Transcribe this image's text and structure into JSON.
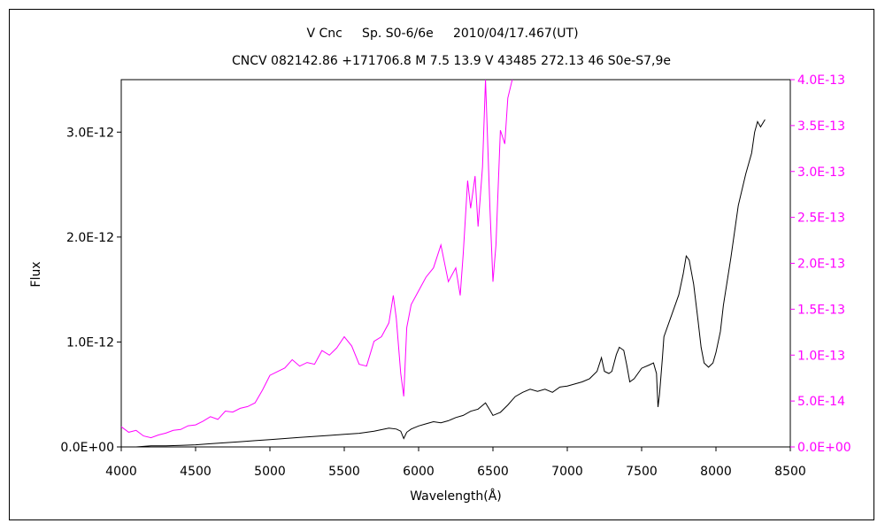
{
  "chart_data": {
    "type": "line",
    "title": "V Cnc     Sp. S0-6/6e     2010/04/17.467(UT)",
    "subtitle": "CNCV 082142.86 +171706.8 M 7.5 13.9 V 43485 272.13 46 S0e-S7,9e",
    "xlabel": "Wavelength(Å)",
    "ylabel": "Flux",
    "xlim": [
      4000,
      8500
    ],
    "ylim": [
      0,
      3.5e-12
    ],
    "y2lim": [
      0,
      4e-13
    ],
    "grid": false,
    "x_ticks": [
      "4000",
      "4500",
      "5000",
      "5500",
      "6000",
      "6500",
      "7000",
      "7500",
      "8000",
      "8500"
    ],
    "y_ticks": [
      "0.0E+00",
      "1.0E-12",
      "2.0E-12",
      "3.0E-12"
    ],
    "y2_ticks": [
      "0.0E+00",
      "5.0E-14",
      "1.0E-13",
      "1.5E-13",
      "2.0E-13",
      "2.5E-13",
      "3.0E-13",
      "3.5E-13",
      "4.0E-13"
    ],
    "colors": {
      "series1": "#000000",
      "series2": "#ff00ff"
    },
    "series": [
      {
        "axis": "left",
        "x": [
          4000,
          4100,
          4200,
          4300,
          4400,
          4500,
          4600,
          4700,
          4800,
          4900,
          5000,
          5100,
          5200,
          5300,
          5400,
          5500,
          5600,
          5700,
          5800,
          5850,
          5880,
          5900,
          5920,
          5950,
          6000,
          6050,
          6100,
          6150,
          6200,
          6250,
          6300,
          6350,
          6400,
          6450,
          6480,
          6500,
          6550,
          6600,
          6650,
          6700,
          6750,
          6800,
          6850,
          6900,
          6950,
          7000,
          7050,
          7100,
          7150,
          7200,
          7230,
          7250,
          7280,
          7300,
          7330,
          7350,
          7380,
          7400,
          7420,
          7450,
          7500,
          7550,
          7580,
          7600,
          7610,
          7620,
          7640,
          7650,
          7700,
          7750,
          7780,
          7800,
          7820,
          7850,
          7880,
          7900,
          7920,
          7950,
          7980,
          8000,
          8030,
          8050,
          8100,
          8150,
          8200,
          8240,
          8260,
          8280,
          8300,
          8330
        ],
        "values": [
          0.0,
          0.0,
          1e-14,
          1e-14,
          1.5e-14,
          2e-14,
          3e-14,
          4e-14,
          5e-14,
          6e-14,
          7e-14,
          8e-14,
          9e-14,
          1e-13,
          1.1e-13,
          1.2e-13,
          1.3e-13,
          1.5e-13,
          1.8e-13,
          1.7e-13,
          1.5e-13,
          8e-14,
          1.4e-13,
          1.7e-13,
          2e-13,
          2.2e-13,
          2.4e-13,
          2.3e-13,
          2.5e-13,
          2.8e-13,
          3e-13,
          3.4e-13,
          3.6e-13,
          4.2e-13,
          3.5e-13,
          3e-13,
          3.3e-13,
          4e-13,
          4.8e-13,
          5.2e-13,
          5.5e-13,
          5.3e-13,
          5.5e-13,
          5.2e-13,
          5.7e-13,
          5.8e-13,
          6e-13,
          6.2e-13,
          6.5e-13,
          7.2e-13,
          8.5e-13,
          7.2e-13,
          7e-13,
          7.2e-13,
          8.8e-13,
          9.5e-13,
          9.2e-13,
          7.8e-13,
          6.2e-13,
          6.5e-13,
          7.5e-13,
          7.8e-13,
          8e-13,
          7e-13,
          3.8e-13,
          5e-13,
          8.5e-13,
          1.05e-12,
          1.25e-12,
          1.45e-12,
          1.65e-12,
          1.82e-12,
          1.78e-12,
          1.55e-12,
          1.2e-12,
          9.5e-13,
          8e-13,
          7.6e-13,
          8e-13,
          9e-13,
          1.1e-12,
          1.35e-12,
          1.8e-12,
          2.3e-12,
          2.6e-12,
          2.8e-12,
          3e-12,
          3.1e-12,
          3.05e-12,
          3.12e-12
        ]
      },
      {
        "axis": "right",
        "x": [
          4000,
          4050,
          4100,
          4150,
          4200,
          4250,
          4300,
          4350,
          4400,
          4450,
          4500,
          4550,
          4600,
          4650,
          4700,
          4750,
          4800,
          4850,
          4900,
          4950,
          5000,
          5050,
          5100,
          5150,
          5200,
          5250,
          5300,
          5350,
          5400,
          5450,
          5500,
          5550,
          5600,
          5650,
          5700,
          5750,
          5800,
          5830,
          5850,
          5880,
          5900,
          5920,
          5950,
          6000,
          6050,
          6100,
          6150,
          6200,
          6250,
          6280,
          6300,
          6330,
          6350,
          6380,
          6400,
          6430,
          6450,
          6480,
          6500,
          6520,
          6550,
          6580,
          6600,
          6630
        ],
        "values": [
          2.2e-14,
          1.6e-14,
          1.8e-14,
          1.2e-14,
          1e-14,
          1.3e-14,
          1.5e-14,
          1.8e-14,
          1.9e-14,
          2.3e-14,
          2.4e-14,
          2.8e-14,
          3.3e-14,
          3e-14,
          3.9e-14,
          3.8e-14,
          4.2e-14,
          4.4e-14,
          4.8e-14,
          6.2e-14,
          7.8e-14,
          8.2e-14,
          8.6e-14,
          9.5e-14,
          8.8e-14,
          9.2e-14,
          9e-14,
          1.05e-13,
          1e-13,
          1.08e-13,
          1.2e-13,
          1.1e-13,
          9e-14,
          8.8e-14,
          1.15e-13,
          1.2e-13,
          1.35e-13,
          1.65e-13,
          1.4e-13,
          8e-14,
          5.5e-14,
          1.3e-13,
          1.55e-13,
          1.7e-13,
          1.85e-13,
          1.95e-13,
          2.2e-13,
          1.8e-13,
          1.95e-13,
          1.65e-13,
          2.1e-13,
          2.9e-13,
          2.6e-13,
          2.95e-13,
          2.4e-13,
          3.05e-13,
          4e-13,
          2.6e-13,
          1.8e-13,
          2.2e-13,
          3.45e-13,
          3.3e-13,
          3.8e-13,
          4e-13
        ]
      }
    ]
  }
}
